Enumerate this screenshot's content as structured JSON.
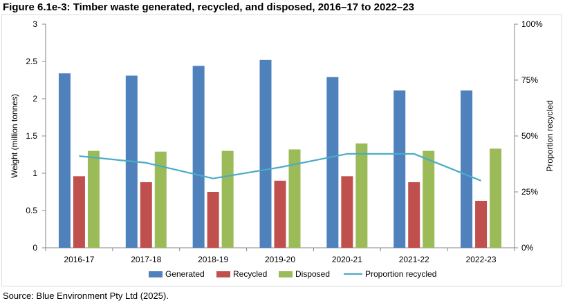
{
  "figure": {
    "title": "Figure 6.1e-3: Timber waste generated, recycled, and disposed, 2016–17 to 2022–23",
    "source": "Source: Blue Environment Pty Ltd (2025)."
  },
  "chart_data": {
    "type": "bar",
    "categories": [
      "2016-17",
      "2017-18",
      "2018-19",
      "2019-20",
      "2020-21",
      "2021-22",
      "2022-23"
    ],
    "series": [
      {
        "name": "Generated",
        "kind": "bar",
        "axis": "left",
        "color": "#4f81bd",
        "values": [
          2.34,
          2.31,
          2.44,
          2.52,
          2.29,
          2.11,
          2.11
        ]
      },
      {
        "name": "Recycled",
        "kind": "bar",
        "axis": "left",
        "color": "#c0504d",
        "values": [
          0.96,
          0.88,
          0.75,
          0.9,
          0.96,
          0.88,
          0.63
        ]
      },
      {
        "name": "Disposed",
        "kind": "bar",
        "axis": "left",
        "color": "#9bbb59",
        "values": [
          1.3,
          1.29,
          1.3,
          1.32,
          1.4,
          1.3,
          1.33
        ]
      },
      {
        "name": "Proportion recycled",
        "kind": "line",
        "axis": "right",
        "color": "#4bacc6",
        "values": [
          0.41,
          0.38,
          0.31,
          0.36,
          0.42,
          0.42,
          0.3
        ]
      }
    ],
    "ylabel": "Weight (million tonnes)",
    "ylim": [
      0,
      3
    ],
    "yticks": [
      "0",
      "0.5",
      "1",
      "1.5",
      "2",
      "2.5",
      "3"
    ],
    "y2label": "Proportion recycled",
    "y2lim": [
      0,
      1
    ],
    "y2ticks": [
      "0%",
      "25%",
      "50%",
      "75%",
      "100%"
    ],
    "grid": false,
    "legend_position": "bottom"
  }
}
